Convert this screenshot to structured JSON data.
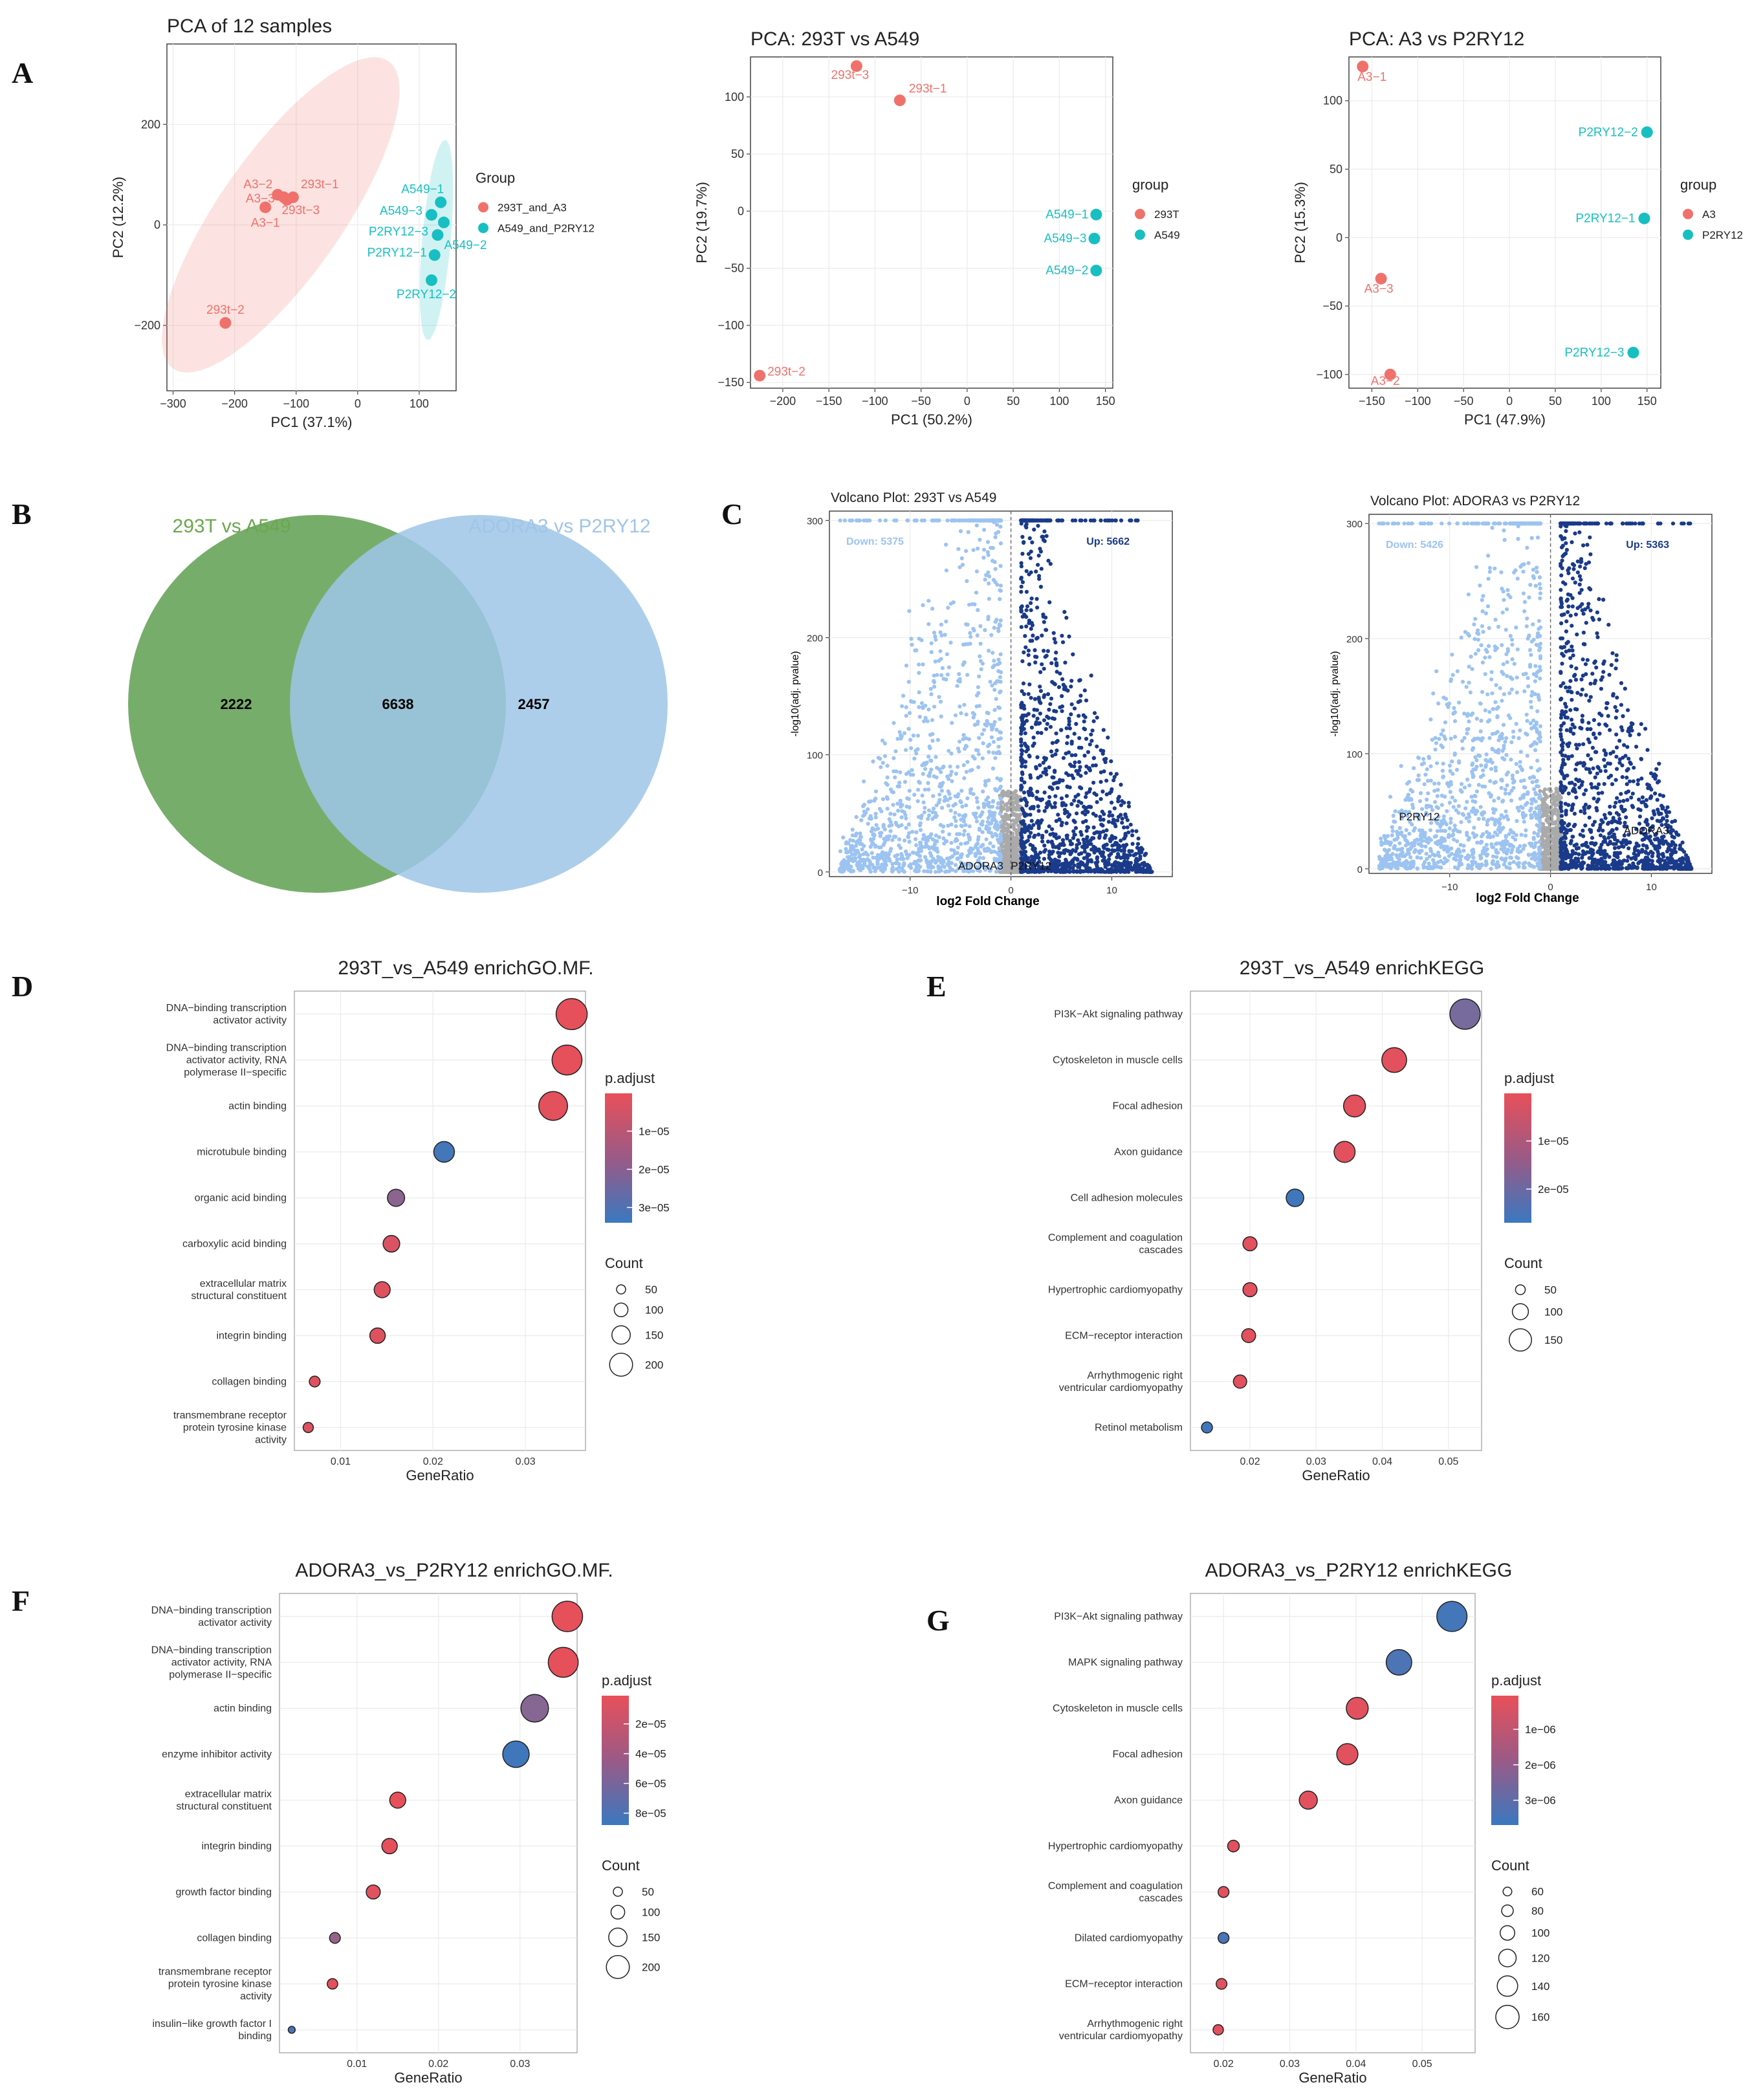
{
  "panels": {
    "A": "A",
    "B": "B",
    "C": "C",
    "D": "D",
    "E": "E",
    "F": "F",
    "G": "G"
  },
  "colors": {
    "red": "#f0716b",
    "teal": "#17bfc2",
    "venn_green": "#5f9f50",
    "venn_blue": "#9ec6e8",
    "venn_green_label": "#6aa84f",
    "venn_blue_label": "#9fc5e8",
    "volcano_down": "#9cc3f1",
    "volcano_up": "#1a3a8a",
    "volcano_ns": "#aaaaaa",
    "padj_high": "#e8505a",
    "padj_low": "#3a78c0"
  },
  "chart_data": [
    {
      "id": "pca_all",
      "type": "scatter",
      "title": "PCA of 12 samples",
      "xlabel": "PC1 (37.1%)",
      "ylabel": "PC2 (12.2%)",
      "xlim": [
        -310,
        160
      ],
      "ylim": [
        -330,
        360
      ],
      "xticks": [
        -300,
        -200,
        -100,
        0,
        100
      ],
      "yticks": [
        -200,
        0,
        200
      ],
      "legend_title": "Group",
      "groups": [
        {
          "name": "293T_and_A3",
          "color": "#f0716b",
          "points": [
            {
              "label": "A3−2",
              "x": -130,
              "y": 60
            },
            {
              "label": "A3−3",
              "x": -120,
              "y": 55
            },
            {
              "label": "A3−1",
              "x": -150,
              "y": 35
            },
            {
              "label": "293t−1",
              "x": -105,
              "y": 55
            },
            {
              "label": "293t−3",
              "x": -115,
              "y": 50
            },
            {
              "label": "293t−2",
              "x": -215,
              "y": -195
            }
          ]
        },
        {
          "name": "A549_and_P2RY12",
          "color": "#17bfc2",
          "points": [
            {
              "label": "A549−1",
              "x": 135,
              "y": 45
            },
            {
              "label": "A549−3",
              "x": 120,
              "y": 20
            },
            {
              "label": "P2RY12−3",
              "x": 140,
              "y": 5
            },
            {
              "label": "A549−2",
              "x": 130,
              "y": -20
            },
            {
              "label": "P2RY12−1",
              "x": 125,
              "y": -60
            },
            {
              "label": "P2RY12−2",
              "x": 120,
              "y": -110
            }
          ]
        }
      ]
    },
    {
      "id": "pca_293t_a549",
      "type": "scatter",
      "title": "PCA: 293T vs A549",
      "xlabel": "PC1 (50.2%)",
      "ylabel": "PC2 (19.7%)",
      "xlim": [
        -235,
        158
      ],
      "ylim": [
        -155,
        135
      ],
      "xticks": [
        -200,
        -150,
        -100,
        -50,
        0,
        50,
        100,
        150
      ],
      "yticks": [
        -150,
        -100,
        -50,
        0,
        50,
        100
      ],
      "legend_title": "group",
      "groups": [
        {
          "name": "293T",
          "color": "#f0716b",
          "points": [
            {
              "label": "293t−3",
              "x": -120,
              "y": 127
            },
            {
              "label": "293t−1",
              "x": -73,
              "y": 97
            },
            {
              "label": "293t−2",
              "x": -225,
              "y": -144
            }
          ]
        },
        {
          "name": "A549",
          "color": "#17bfc2",
          "points": [
            {
              "label": "A549−1",
              "x": 140,
              "y": -3
            },
            {
              "label": "A549−3",
              "x": 138,
              "y": -24
            },
            {
              "label": "A549−2",
              "x": 140,
              "y": -52
            }
          ]
        }
      ]
    },
    {
      "id": "pca_a3_p2ry12",
      "type": "scatter",
      "title": "PCA: A3 vs P2RY12",
      "xlabel": "PC1 (47.9%)",
      "ylabel": "PC2 (15.3%)",
      "xlim": [
        -175,
        165
      ],
      "ylim": [
        -110,
        132
      ],
      "xticks": [
        -150,
        -100,
        -50,
        0,
        50,
        100,
        150
      ],
      "yticks": [
        -100,
        -50,
        0,
        50,
        100
      ],
      "legend_title": "group",
      "groups": [
        {
          "name": "A3",
          "color": "#f0716b",
          "points": [
            {
              "label": "A3−1",
              "x": -160,
              "y": 125
            },
            {
              "label": "A3−3",
              "x": -140,
              "y": -30
            },
            {
              "label": "A3−2",
              "x": -130,
              "y": -100
            }
          ]
        },
        {
          "name": "P2RY12",
          "color": "#17bfc2",
          "points": [
            {
              "label": "P2RY12−2",
              "x": 150,
              "y": 77
            },
            {
              "label": "P2RY12−1",
              "x": 147,
              "y": 14
            },
            {
              "label": "P2RY12−3",
              "x": 135,
              "y": -84
            }
          ]
        }
      ]
    },
    {
      "id": "venn",
      "type": "venn",
      "sets": [
        {
          "label": "293T vs A549",
          "only": 2222
        },
        {
          "label": "ADORA3 vs P2RY12",
          "only": 2457
        }
      ],
      "overlap": 6638
    },
    {
      "id": "volcano1",
      "type": "scatter",
      "title": "Volcano Plot: 293T vs A549",
      "xlabel": "log2 Fold Change",
      "ylabel": "-log10(adj. pvalue)",
      "xlim": [
        -18,
        16
      ],
      "ylim": [
        -4,
        308
      ],
      "xticks": [
        -10,
        0,
        10
      ],
      "yticks": [
        0,
        100,
        200,
        300
      ],
      "down_label": "Down: 5375",
      "up_label": "Up: 5662",
      "gene_labels": [
        {
          "text": "ADORA3",
          "x": -3,
          "y": 2
        },
        {
          "text": "P2RY12",
          "x": 2,
          "y": 2
        }
      ]
    },
    {
      "id": "volcano2",
      "type": "scatter",
      "title": "Volcano Plot: ADORA3 vs P2RY12",
      "xlabel": "log2 Fold Change",
      "ylabel": "-log10(adj. pvalue)",
      "xlim": [
        -18,
        16
      ],
      "ylim": [
        -4,
        308
      ],
      "xticks": [
        -10,
        0,
        10
      ],
      "yticks": [
        0,
        100,
        200,
        300
      ],
      "down_label": "Down: 5426",
      "up_label": "Up: 5363",
      "gene_labels": [
        {
          "text": "P2RY12",
          "x": -13,
          "y": 42
        },
        {
          "text": "ADORA3",
          "x": 9.5,
          "y": 30
        }
      ]
    },
    {
      "id": "go1",
      "type": "scatter",
      "title": "293T_vs_A549 enrichGO.MF.",
      "xlabel": "GeneRatio",
      "xlim": [
        0.005,
        0.0365
      ],
      "xticks": [
        0.01,
        0.02,
        0.03
      ],
      "padj_range": [
        1e-07,
        3.4e-05
      ],
      "padj_ticks": [
        "1e−05",
        "2e−05",
        "3e−05"
      ],
      "padj_tick_values": [
        1e-05,
        2e-05,
        3e-05
      ],
      "count_range": [
        30,
        220
      ],
      "count_ticks": [
        50,
        100,
        150,
        200
      ],
      "terms": [
        {
          "term": [
            "DNA−binding transcription",
            "activator activity"
          ],
          "ratio": 0.035,
          "padj": 5e-07,
          "count": 220
        },
        {
          "term": [
            "DNA−binding transcription",
            "activator activity, RNA",
            "polymerase II−specific"
          ],
          "ratio": 0.0345,
          "padj": 5e-07,
          "count": 210
        },
        {
          "term": [
            "actin binding"
          ],
          "ratio": 0.033,
          "padj": 1e-06,
          "count": 200
        },
        {
          "term": [
            "microtubule binding"
          ],
          "ratio": 0.0212,
          "padj": 3.2e-05,
          "count": 130
        },
        {
          "term": [
            "organic acid binding"
          ],
          "ratio": 0.016,
          "padj": 1.8e-05,
          "count": 100
        },
        {
          "term": [
            "carboxylic acid binding"
          ],
          "ratio": 0.0155,
          "padj": 3e-06,
          "count": 95
        },
        {
          "term": [
            "extracellular matrix",
            "structural constituent"
          ],
          "ratio": 0.0145,
          "padj": 2e-06,
          "count": 90
        },
        {
          "term": [
            "integrin binding"
          ],
          "ratio": 0.014,
          "padj": 2e-06,
          "count": 85
        },
        {
          "term": [
            "collagen binding"
          ],
          "ratio": 0.0072,
          "padj": 2e-06,
          "count": 45
        },
        {
          "term": [
            "transmembrane receptor",
            "protein tyrosine kinase",
            "activity"
          ],
          "ratio": 0.0065,
          "padj": 2e-06,
          "count": 40
        }
      ]
    },
    {
      "id": "kegg1",
      "type": "scatter",
      "title": "293T_vs_A549 enrichKEGG",
      "xlabel": "GeneRatio",
      "xlim": [
        0.011,
        0.055
      ],
      "xticks": [
        0.02,
        0.03,
        0.04,
        0.05
      ],
      "padj_range": [
        1e-07,
        2.7e-05
      ],
      "padj_ticks": [
        "1e−05",
        "2e−05"
      ],
      "padj_tick_values": [
        1e-05,
        2e-05
      ],
      "count_range": [
        30,
        170
      ],
      "count_ticks": [
        50,
        100,
        150
      ],
      "terms": [
        {
          "term": [
            "PI3K−Akt signaling pathway"
          ],
          "ratio": 0.0525,
          "padj": 1.8e-05,
          "count": 165
        },
        {
          "term": [
            "Cytoskeleton in muscle cells"
          ],
          "ratio": 0.0418,
          "padj": 1e-06,
          "count": 130
        },
        {
          "term": [
            "Focal adhesion"
          ],
          "ratio": 0.0358,
          "padj": 1e-06,
          "count": 112
        },
        {
          "term": [
            "Axon guidance"
          ],
          "ratio": 0.0343,
          "padj": 1e-06,
          "count": 106
        },
        {
          "term": [
            "Cell adhesion molecules"
          ],
          "ratio": 0.0268,
          "padj": 2.6e-05,
          "count": 84
        },
        {
          "term": [
            "Complement and coagulation",
            "cascades"
          ],
          "ratio": 0.02,
          "padj": 1e-06,
          "count": 62
        },
        {
          "term": [
            "Hypertrophic cardiomyopathy"
          ],
          "ratio": 0.02,
          "padj": 1e-06,
          "count": 62
        },
        {
          "term": [
            "ECM−receptor interaction"
          ],
          "ratio": 0.0198,
          "padj": 1e-06,
          "count": 61
        },
        {
          "term": [
            "Arrhythmogenic right",
            "ventricular cardiomyopathy"
          ],
          "ratio": 0.0185,
          "padj": 1e-06,
          "count": 57
        },
        {
          "term": [
            "Retinol metabolism"
          ],
          "ratio": 0.0135,
          "padj": 2.6e-05,
          "count": 42
        }
      ]
    },
    {
      "id": "go2",
      "type": "scatter",
      "title": "ADORA3_vs_P2RY12 enrichGO.MF.",
      "xlabel": "GeneRatio",
      "xlim": [
        0.0005,
        0.037
      ],
      "xticks": [
        0.01,
        0.02,
        0.03
      ],
      "padj_range": [
        1e-06,
        8.8e-05
      ],
      "padj_ticks": [
        "2e−05",
        "4e−05",
        "6e−05",
        "8e−05"
      ],
      "padj_tick_values": [
        2e-05,
        4e-05,
        6e-05,
        8e-05
      ],
      "count_range": [
        30,
        220
      ],
      "count_ticks": [
        50,
        100,
        150,
        200
      ],
      "terms": [
        {
          "term": [
            "DNA−binding transcription",
            "activator activity"
          ],
          "ratio": 0.0358,
          "padj": 2e-06,
          "count": 215
        },
        {
          "term": [
            "DNA−binding transcription",
            "activator activity, RNA",
            "polymerase II−specific"
          ],
          "ratio": 0.0353,
          "padj": 2e-06,
          "count": 210
        },
        {
          "term": [
            "actin binding"
          ],
          "ratio": 0.0318,
          "padj": 5e-05,
          "count": 190
        },
        {
          "term": [
            "enzyme inhibitor activity"
          ],
          "ratio": 0.0295,
          "padj": 8.5e-05,
          "count": 180
        },
        {
          "term": [
            "extracellular matrix",
            "structural constituent"
          ],
          "ratio": 0.015,
          "padj": 2e-06,
          "count": 90
        },
        {
          "term": [
            "integrin binding"
          ],
          "ratio": 0.014,
          "padj": 2e-06,
          "count": 85
        },
        {
          "term": [
            "growth factor binding"
          ],
          "ratio": 0.012,
          "padj": 5e-06,
          "count": 73
        },
        {
          "term": [
            "collagen binding"
          ],
          "ratio": 0.0073,
          "padj": 4e-05,
          "count": 45
        },
        {
          "term": [
            "transmembrane receptor",
            "protein tyrosine kinase",
            "activity"
          ],
          "ratio": 0.007,
          "padj": 3e-06,
          "count": 42
        },
        {
          "term": [
            "insulin−like growth factor I",
            "binding"
          ],
          "ratio": 0.002,
          "padj": 8e-05,
          "count": 12
        }
      ]
    },
    {
      "id": "kegg2",
      "type": "scatter",
      "title": "ADORA3_vs_P2RY12 enrichKEGG",
      "xlabel": "GeneRatio",
      "xlim": [
        0.015,
        0.058
      ],
      "xticks": [
        0.02,
        0.03,
        0.04,
        0.05
      ],
      "padj_range": [
        5e-08,
        3.7e-06
      ],
      "padj_ticks": [
        "1e−06",
        "2e−06",
        "3e−06"
      ],
      "padj_tick_values": [
        1e-06,
        2e-06,
        3e-06
      ],
      "count_range": [
        50,
        170
      ],
      "count_ticks": [
        60,
        80,
        100,
        120,
        140,
        160
      ],
      "terms": [
        {
          "term": [
            "PI3K−Akt signaling pathway"
          ],
          "ratio": 0.0545,
          "padj": 3.5e-06,
          "count": 165
        },
        {
          "term": [
            "MAPK signaling pathway"
          ],
          "ratio": 0.0465,
          "padj": 3.3e-06,
          "count": 140
        },
        {
          "term": [
            "Cytoskeleton in muscle cells"
          ],
          "ratio": 0.0402,
          "padj": 2e-07,
          "count": 120
        },
        {
          "term": [
            "Focal adhesion"
          ],
          "ratio": 0.0387,
          "padj": 2e-07,
          "count": 116
        },
        {
          "term": [
            "Axon guidance"
          ],
          "ratio": 0.0328,
          "padj": 2e-07,
          "count": 99
        },
        {
          "term": [
            "Hypertrophic cardiomyopathy"
          ],
          "ratio": 0.0215,
          "padj": 2e-07,
          "count": 64
        },
        {
          "term": [
            "Complement and coagulation",
            "cascades"
          ],
          "ratio": 0.02,
          "padj": 2e-07,
          "count": 60
        },
        {
          "term": [
            "Dilated cardiomyopathy"
          ],
          "ratio": 0.02,
          "padj": 3.4e-06,
          "count": 60
        },
        {
          "term": [
            "ECM−receptor interaction"
          ],
          "ratio": 0.0197,
          "padj": 2e-07,
          "count": 59
        },
        {
          "term": [
            "Arrhythmogenic right",
            "ventricular cardiomyopathy"
          ],
          "ratio": 0.0192,
          "padj": 2e-07,
          "count": 57
        }
      ]
    }
  ],
  "legend_titles": {
    "padj": "p.adjust",
    "count": "Count"
  }
}
